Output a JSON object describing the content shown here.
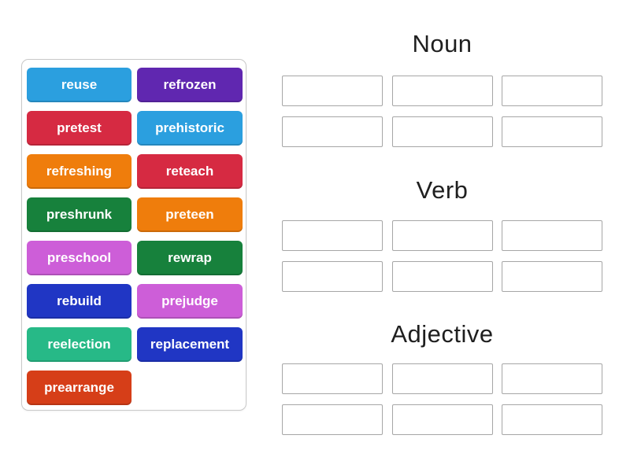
{
  "word_bank": {
    "words": [
      {
        "label": "reuse",
        "color": "#2b9fdf"
      },
      {
        "label": "refrozen",
        "color": "#6027b0"
      },
      {
        "label": "pretest",
        "color": "#d62a42"
      },
      {
        "label": "prehistoric",
        "color": "#2b9fdf"
      },
      {
        "label": "refreshing",
        "color": "#ef7d0c"
      },
      {
        "label": "reteach",
        "color": "#d62a42"
      },
      {
        "label": "preshrunk",
        "color": "#17813c"
      },
      {
        "label": "preteen",
        "color": "#ef7d0c"
      },
      {
        "label": "preschool",
        "color": "#cd5ed8"
      },
      {
        "label": "rewrap",
        "color": "#17813c"
      },
      {
        "label": "rebuild",
        "color": "#2036c4"
      },
      {
        "label": "prejudge",
        "color": "#cd5ed8"
      },
      {
        "label": "reelection",
        "color": "#27b987"
      },
      {
        "label": "replacement",
        "color": "#2036c4"
      },
      {
        "label": "prearrange",
        "color": "#d63e18"
      }
    ]
  },
  "groups": [
    {
      "label": "Noun",
      "slot_count": 6
    },
    {
      "label": "Verb",
      "slot_count": 6
    },
    {
      "label": "Adjective",
      "slot_count": 6
    }
  ],
  "colors": {
    "tile_text": "#ffffff",
    "heading_text": "#1f1f1f",
    "slot_border": "#a6a6a6",
    "panel_border": "#c9c9c9",
    "background": "#ffffff"
  }
}
